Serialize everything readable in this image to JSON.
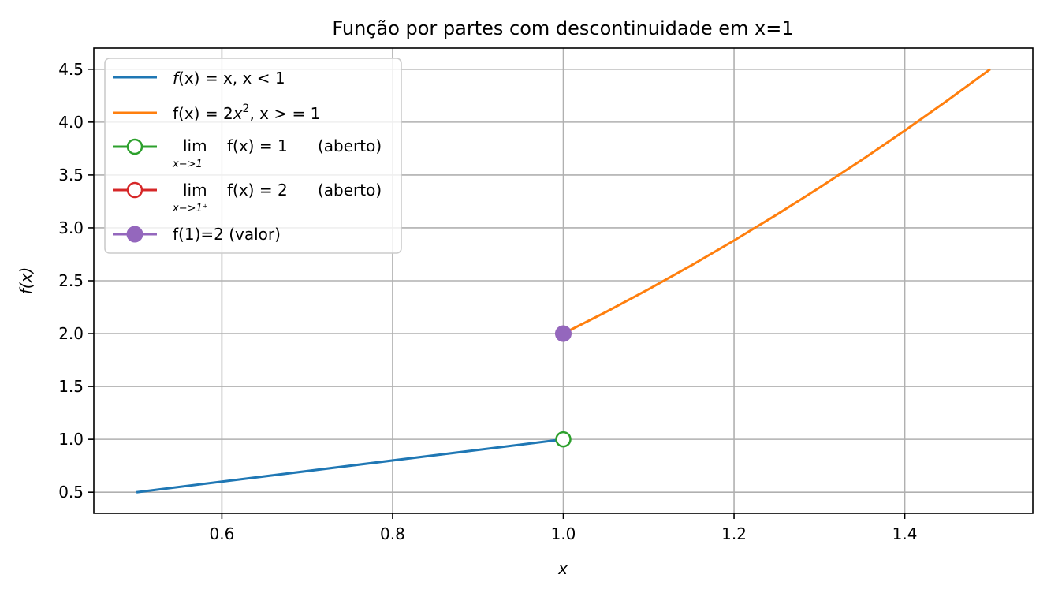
{
  "chart_data": {
    "type": "line",
    "title": "Função por partes com descontinuidade em x=1",
    "xlabel": "x",
    "ylabel": "f(x)",
    "xlim": [
      0.45,
      1.55
    ],
    "ylim": [
      0.3,
      4.7
    ],
    "xticks": [
      0.6,
      0.8,
      1.0,
      1.2,
      1.4
    ],
    "xtick_labels": [
      "0.6",
      "0.8",
      "1.0",
      "1.2",
      "1.4"
    ],
    "yticks": [
      0.5,
      1.0,
      1.5,
      2.0,
      2.5,
      3.0,
      3.5,
      4.0,
      4.5
    ],
    "ytick_labels": [
      "0.5",
      "1.0",
      "1.5",
      "2.0",
      "2.5",
      "3.0",
      "3.5",
      "4.0",
      "4.5"
    ],
    "grid": true,
    "legend_position": "upper-left",
    "series": [
      {
        "name": "f(x) = x, x < 1",
        "color": "#1f77b4",
        "kind": "line",
        "x": [
          0.5,
          1.0
        ],
        "y": [
          0.5,
          1.0
        ]
      },
      {
        "name": "f(x) = 2x², x > = 1",
        "color": "#ff7f0e",
        "kind": "line",
        "x": [
          1.0,
          1.05,
          1.1,
          1.15,
          1.2,
          1.25,
          1.3,
          1.35,
          1.4,
          1.45,
          1.5
        ],
        "y": [
          2.0,
          2.205,
          2.42,
          2.645,
          2.88,
          3.125,
          3.38,
          3.645,
          3.92,
          4.205,
          4.5
        ]
      },
      {
        "name": "lim x->1⁻ f(x) = 1 (aberto)",
        "color": "#2ca02c",
        "kind": "open-marker",
        "x": [
          1.0
        ],
        "y": [
          1.0
        ]
      },
      {
        "name": "lim x->1⁺ f(x) = 2 (aberto)",
        "color": "#d62728",
        "kind": "open-marker",
        "x": [
          1.0
        ],
        "y": [
          2.0
        ]
      },
      {
        "name": "f(1)=2 (valor)",
        "color": "#9467bd",
        "kind": "filled-marker",
        "x": [
          1.0
        ],
        "y": [
          2.0
        ]
      }
    ]
  },
  "legend": {
    "entry1": {
      "lhs": "f",
      "paren": "(x) = x, x < 1"
    },
    "entry2": {
      "prefix": "f(x) = 2",
      "var": "x",
      "sup": "2",
      "suffix": ", x > = 1"
    },
    "entry3": {
      "lim": "lim",
      "sub": "x−>1⁻",
      "expr": "f(x) = 1",
      "note": "(aberto)"
    },
    "entry4": {
      "lim": "lim",
      "sub": "x−>1⁺",
      "expr": "f(x) = 2",
      "note": "(aberto)"
    },
    "entry5": {
      "text": "f(1)=2 (valor)"
    }
  }
}
